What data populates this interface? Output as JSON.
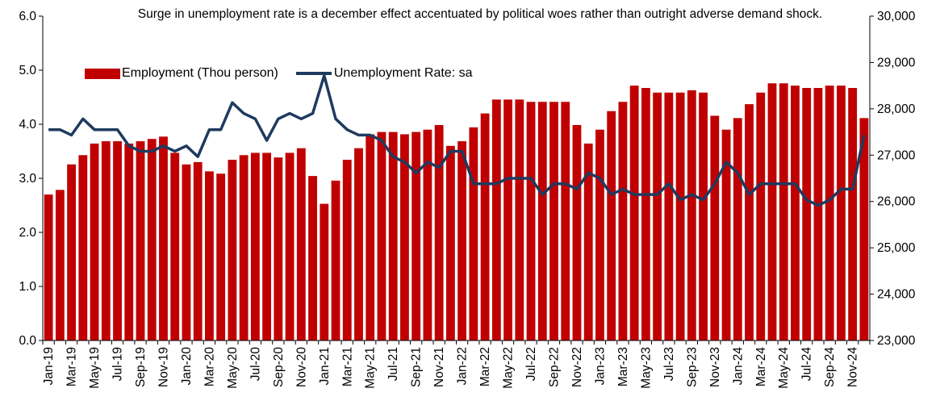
{
  "chart_data": {
    "type": "bar",
    "title": "Surge in unemployment rate is a december effect accentuated by political woes rather than outright adverse demand shock.",
    "x": [
      "Jan-19",
      "Feb-19",
      "Mar-19",
      "Apr-19",
      "May-19",
      "Jun-19",
      "Jul-19",
      "Aug-19",
      "Sep-19",
      "Oct-19",
      "Nov-19",
      "Dec-19",
      "Jan-20",
      "Feb-20",
      "Mar-20",
      "Apr-20",
      "May-20",
      "Jun-20",
      "Jul-20",
      "Aug-20",
      "Sep-20",
      "Oct-20",
      "Nov-20",
      "Dec-20",
      "Jan-21",
      "Feb-21",
      "Mar-21",
      "Apr-21",
      "May-21",
      "Jun-21",
      "Jul-21",
      "Aug-21",
      "Sep-21",
      "Oct-21",
      "Nov-21",
      "Dec-21",
      "Jan-22",
      "Feb-22",
      "Mar-22",
      "Apr-22",
      "May-22",
      "Jun-22",
      "Jul-22",
      "Aug-22",
      "Sep-22",
      "Oct-22",
      "Nov-22",
      "Dec-22",
      "Jan-23",
      "Feb-23",
      "Mar-23",
      "Apr-23",
      "May-23",
      "Jun-23",
      "Jul-23",
      "Aug-23",
      "Sep-23",
      "Oct-23",
      "Nov-23",
      "Dec-23",
      "Jan-24",
      "Feb-24",
      "Mar-24",
      "Apr-24",
      "May-24",
      "Jun-24",
      "Jul-24",
      "Aug-24",
      "Sep-24",
      "Oct-24",
      "Nov-24",
      "Dec-24"
    ],
    "series": [
      {
        "name": "Employment (Thou person)",
        "type": "bar",
        "axis": "right",
        "color": "#c00000",
        "values": [
          26150,
          26250,
          26800,
          27000,
          27250,
          27300,
          27300,
          27250,
          27300,
          27350,
          27400,
          27050,
          26800,
          26850,
          26650,
          26600,
          26900,
          27000,
          27050,
          27050,
          26950,
          27050,
          27150,
          26550,
          25950,
          26450,
          26900,
          27150,
          27450,
          27500,
          27500,
          27450,
          27500,
          27550,
          27650,
          27200,
          27300,
          27600,
          27900,
          28200,
          28200,
          28200,
          28150,
          28150,
          28150,
          28150,
          27650,
          27250,
          27550,
          27950,
          28150,
          28500,
          28450,
          28350,
          28350,
          28350,
          28400,
          28350,
          27850,
          27550,
          27800,
          28100,
          28350,
          28550,
          28550,
          28500,
          28450,
          28450,
          28500,
          28500,
          28450,
          27800
        ]
      },
      {
        "name": "Unemployment Rate: sa",
        "type": "line",
        "axis": "left",
        "color": "#1f3a5f",
        "values": [
          3.9,
          3.9,
          3.8,
          4.1,
          3.9,
          3.9,
          3.9,
          3.6,
          3.5,
          3.5,
          3.6,
          3.5,
          3.6,
          3.4,
          3.9,
          3.9,
          4.4,
          4.2,
          4.1,
          3.7,
          4.1,
          4.2,
          4.1,
          4.2,
          4.9,
          4.1,
          3.9,
          3.8,
          3.8,
          3.7,
          3.4,
          3.3,
          3.1,
          3.3,
          3.2,
          3.5,
          3.5,
          2.9,
          2.9,
          2.9,
          3.0,
          3.0,
          3.0,
          2.7,
          2.9,
          2.9,
          2.8,
          3.1,
          3.0,
          2.7,
          2.8,
          2.7,
          2.7,
          2.7,
          2.9,
          2.6,
          2.7,
          2.6,
          2.9,
          3.3,
          3.1,
          2.7,
          2.9,
          2.9,
          2.9,
          2.9,
          2.6,
          2.5,
          2.6,
          2.8,
          2.8,
          3.8
        ]
      }
    ],
    "y_left": {
      "ylim": [
        0,
        6
      ],
      "ticks": [
        "0.0",
        "1.0",
        "2.0",
        "3.0",
        "4.0",
        "5.0",
        "6.0"
      ]
    },
    "y_right": {
      "ylim": [
        23000,
        30000
      ],
      "ticks": [
        "23,000",
        "24,000",
        "25,000",
        "26,000",
        "27,000",
        "28,000",
        "29,000",
        "30,000"
      ]
    },
    "x_tick_every": 2,
    "legend_position": "top-left",
    "grid": false
  }
}
